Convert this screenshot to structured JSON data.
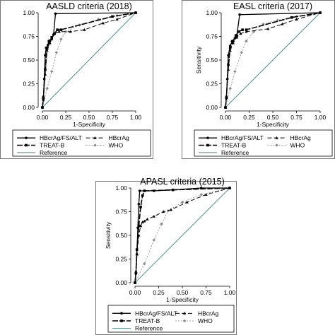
{
  "legend_labels": {
    "hbcrag_fs_alt": "HBcrAg/FS/ALT",
    "hbcrag": "HBcrAg",
    "treat_b": "TREAT-B",
    "who": "WHO",
    "reference": "Reference"
  },
  "colors": {
    "reference": "#4f8f8f",
    "series": "#000000",
    "who": "#888888"
  },
  "chart_data": [
    {
      "type": "line",
      "title": "AASLD criteria (2018)",
      "xlabel": "1-Specificity",
      "ylabel": "",
      "xlim": [
        0,
        1
      ],
      "ylim": [
        0,
        1
      ],
      "xticks": [
        "0.00",
        "0.25",
        "0.50",
        "0.75",
        "1.00"
      ],
      "yticks": [
        "0.00",
        "0.25",
        "0.50",
        "0.75",
        "1.00"
      ],
      "legend_position": "bottom",
      "series": [
        {
          "name": "HBcrAg/FS/ALT",
          "key": "hbcrag_fs_alt",
          "points": [
            [
              0,
              0
            ],
            [
              0.01,
              0.08
            ],
            [
              0.02,
              0.3
            ],
            [
              0.03,
              0.55
            ],
            [
              0.04,
              0.63
            ],
            [
              0.06,
              0.66
            ],
            [
              0.08,
              0.7
            ],
            [
              0.1,
              0.73
            ],
            [
              0.12,
              0.77
            ],
            [
              0.14,
              0.99
            ],
            [
              1,
              1
            ]
          ]
        },
        {
          "name": "HBcrAg",
          "key": "hbcrag",
          "points": [
            [
              0,
              0
            ],
            [
              0.01,
              0.12
            ],
            [
              0.03,
              0.35
            ],
            [
              0.05,
              0.6
            ],
            [
              0.08,
              0.68
            ],
            [
              0.1,
              0.72
            ],
            [
              0.13,
              0.78
            ],
            [
              0.18,
              0.8
            ],
            [
              0.3,
              0.8
            ],
            [
              0.45,
              0.82
            ],
            [
              0.65,
              0.89
            ],
            [
              0.8,
              0.93
            ],
            [
              1,
              1
            ]
          ]
        },
        {
          "name": "TREAT-B",
          "key": "treat_b",
          "points": [
            [
              0,
              0
            ],
            [
              0.01,
              0.1
            ],
            [
              0.03,
              0.4
            ],
            [
              0.05,
              0.62
            ],
            [
              0.07,
              0.7
            ],
            [
              0.1,
              0.74
            ],
            [
              0.13,
              0.78
            ],
            [
              0.16,
              0.82
            ],
            [
              0.2,
              0.82
            ],
            [
              0.75,
              0.96
            ],
            [
              1,
              1
            ]
          ]
        },
        {
          "name": "WHO",
          "key": "who",
          "points": [
            [
              0,
              0
            ],
            [
              0.05,
              0.2
            ],
            [
              0.1,
              0.38
            ],
            [
              0.15,
              0.58
            ],
            [
              0.2,
              0.72
            ],
            [
              0.25,
              0.8
            ],
            [
              0.4,
              0.87
            ],
            [
              0.6,
              0.93
            ],
            [
              0.8,
              0.97
            ],
            [
              1,
              1
            ]
          ]
        },
        {
          "name": "Reference",
          "key": "reference",
          "points": [
            [
              0,
              0
            ],
            [
              1,
              1
            ]
          ]
        }
      ]
    },
    {
      "type": "line",
      "title": "EASL criteria (2017)",
      "xlabel": "1-Specificity",
      "ylabel": "Sensitivity",
      "xlim": [
        0,
        1
      ],
      "ylim": [
        0,
        1
      ],
      "xticks": [
        "0.00",
        "0.25",
        "0.50",
        "0.75",
        "1.00"
      ],
      "yticks": [
        "0.00",
        "0.25",
        "0.50",
        "0.75",
        "1.00"
      ],
      "legend_position": "bottom",
      "series": [
        {
          "name": "HBcrAg/FS/ALT",
          "key": "hbcrag_fs_alt",
          "points": [
            [
              0,
              0
            ],
            [
              0.01,
              0.1
            ],
            [
              0.02,
              0.3
            ],
            [
              0.03,
              0.55
            ],
            [
              0.05,
              0.65
            ],
            [
              0.07,
              0.7
            ],
            [
              0.1,
              0.73
            ],
            [
              0.12,
              0.76
            ],
            [
              0.15,
              0.98
            ],
            [
              1,
              1
            ]
          ]
        },
        {
          "name": "HBcrAg",
          "key": "hbcrag",
          "points": [
            [
              0,
              0
            ],
            [
              0.01,
              0.12
            ],
            [
              0.03,
              0.4
            ],
            [
              0.05,
              0.6
            ],
            [
              0.08,
              0.68
            ],
            [
              0.12,
              0.74
            ],
            [
              0.16,
              0.78
            ],
            [
              0.22,
              0.8
            ],
            [
              0.45,
              0.83
            ],
            [
              0.6,
              0.88
            ],
            [
              0.75,
              0.93
            ],
            [
              1,
              1
            ]
          ]
        },
        {
          "name": "TREAT-B",
          "key": "treat_b",
          "points": [
            [
              0,
              0
            ],
            [
              0.01,
              0.1
            ],
            [
              0.03,
              0.45
            ],
            [
              0.05,
              0.63
            ],
            [
              0.08,
              0.7
            ],
            [
              0.11,
              0.76
            ],
            [
              0.14,
              0.8
            ],
            [
              0.18,
              0.82
            ],
            [
              0.22,
              0.82
            ],
            [
              0.7,
              0.95
            ],
            [
              1,
              1
            ]
          ]
        },
        {
          "name": "WHO",
          "key": "who",
          "points": [
            [
              0,
              0
            ],
            [
              0.05,
              0.2
            ],
            [
              0.1,
              0.38
            ],
            [
              0.17,
              0.58
            ],
            [
              0.22,
              0.7
            ],
            [
              0.3,
              0.8
            ],
            [
              0.4,
              0.88
            ],
            [
              0.55,
              0.92
            ],
            [
              0.75,
              0.96
            ],
            [
              1,
              1
            ]
          ]
        },
        {
          "name": "Reference",
          "key": "reference",
          "points": [
            [
              0,
              0
            ],
            [
              1,
              1
            ]
          ]
        }
      ]
    },
    {
      "type": "line",
      "title": "APASL criteria (2015)",
      "xlabel": "1-Specificity",
      "ylabel": "Sensitivity",
      "xlim": [
        0,
        1
      ],
      "ylim": [
        0,
        1
      ],
      "xticks": [
        "0.00",
        "0.25",
        "0.50",
        "0.75",
        "1.00"
      ],
      "yticks": [
        "0.00",
        "0.25",
        "0.50",
        "0.75",
        "1.00"
      ],
      "legend_position": "bottom",
      "series": [
        {
          "name": "HBcrAg/FS/ALT",
          "key": "hbcrag_fs_alt",
          "points": [
            [
              0,
              0
            ],
            [
              0.01,
              0.1
            ],
            [
              0.02,
              0.3
            ],
            [
              0.03,
              0.58
            ],
            [
              0.04,
              0.83
            ],
            [
              0.05,
              0.97
            ],
            [
              0.2,
              0.97
            ],
            [
              0.4,
              0.98
            ],
            [
              0.7,
              1
            ],
            [
              1,
              1
            ]
          ]
        },
        {
          "name": "HBcrAg",
          "key": "hbcrag",
          "points": [
            [
              0,
              0
            ],
            [
              0.01,
              0.12
            ],
            [
              0.02,
              0.3
            ],
            [
              0.04,
              0.5
            ],
            [
              0.06,
              0.6
            ],
            [
              0.08,
              0.64
            ],
            [
              0.1,
              0.65
            ],
            [
              0.13,
              0.67
            ],
            [
              0.2,
              0.7
            ],
            [
              0.3,
              0.75
            ],
            [
              0.38,
              0.77
            ],
            [
              0.55,
              0.85
            ],
            [
              0.75,
              0.93
            ],
            [
              1,
              1
            ]
          ]
        },
        {
          "name": "TREAT-B",
          "key": "treat_b",
          "points": [
            [
              0,
              0
            ],
            [
              0.01,
              0.1
            ],
            [
              0.02,
              0.35
            ],
            [
              0.04,
              0.6
            ],
            [
              0.06,
              0.8
            ],
            [
              0.08,
              0.92
            ],
            [
              0.1,
              0.97
            ],
            [
              0.4,
              0.98
            ],
            [
              1,
              1
            ]
          ]
        },
        {
          "name": "WHO",
          "key": "who",
          "points": [
            [
              0,
              0
            ],
            [
              0.1,
              0.2
            ],
            [
              0.2,
              0.45
            ],
            [
              0.28,
              0.62
            ],
            [
              0.35,
              0.76
            ],
            [
              0.5,
              0.85
            ],
            [
              0.7,
              0.93
            ],
            [
              1,
              1
            ]
          ]
        },
        {
          "name": "Reference",
          "key": "reference",
          "points": [
            [
              0,
              0
            ],
            [
              1,
              1
            ]
          ]
        }
      ]
    }
  ]
}
